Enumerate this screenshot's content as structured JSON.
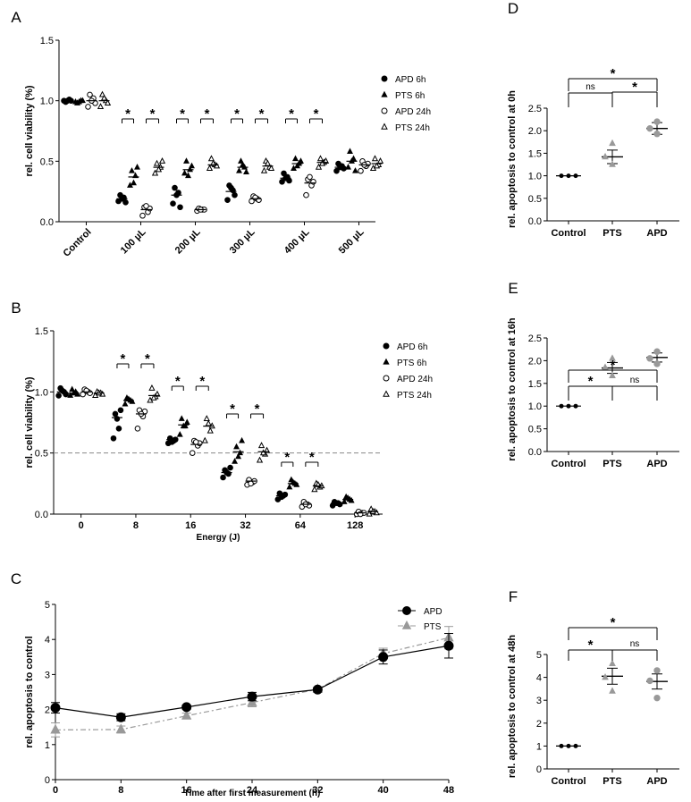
{
  "colors": {
    "black": "#000000",
    "gray": "#999999",
    "dash": "#888888"
  },
  "panels": {
    "A": {
      "letter": "A",
      "ylabel": "rel. cell viability (%)",
      "yticks": [
        "0.0",
        "0.5",
        "1.0",
        "1.5"
      ],
      "xticks": [
        "Control",
        "100 µL",
        "200 µL",
        "300 µL",
        "400 µL",
        "500 µL"
      ],
      "legend": [
        "APD 6h",
        "PTS 6h",
        "APD 24h",
        "PTS 24h"
      ],
      "star": "*"
    },
    "B": {
      "letter": "B",
      "ylabel": "rel. cell viability (%)",
      "xlabel": "Energy (J)",
      "yticks": [
        "0.0",
        "0.5",
        "1.0",
        "1.5"
      ],
      "xticks": [
        "0",
        "8",
        "16",
        "32",
        "64",
        "128"
      ],
      "legend": [
        "APD 6h",
        "PTS 6h",
        "APD 24h",
        "PTS 24h"
      ],
      "star": "*"
    },
    "C": {
      "letter": "C",
      "ylabel": "rel. apoptosis to control",
      "xlabel": "Time after first measurement (h)",
      "yticks": [
        "0",
        "1",
        "2",
        "3",
        "4",
        "5"
      ],
      "xticks": [
        "0",
        "8",
        "16",
        "24",
        "32",
        "40",
        "48"
      ],
      "legend": [
        "APD",
        "PTS"
      ]
    },
    "D": {
      "letter": "D",
      "ylabel": "rel. apoptosis to control at 0h",
      "yticks": [
        "0.0",
        "0.5",
        "1.0",
        "1.5",
        "2.0",
        "2.5"
      ],
      "xticks": [
        "Control",
        "PTS",
        "APD"
      ],
      "sig": [
        "*",
        "ns",
        "*"
      ]
    },
    "E": {
      "letter": "E",
      "ylabel": "rel. apoptosis to control at 16h",
      "yticks": [
        "0.0",
        "0.5",
        "1.0",
        "1.5",
        "2.0",
        "2.5"
      ],
      "xticks": [
        "Control",
        "PTS",
        "APD"
      ],
      "sig": [
        "*",
        "*",
        "ns"
      ]
    },
    "F": {
      "letter": "F",
      "ylabel": "rel. apoptosis to control at 48h",
      "yticks": [
        "0",
        "1",
        "2",
        "3",
        "4",
        "5"
      ],
      "xticks": [
        "Control",
        "PTS",
        "APD"
      ],
      "sig": [
        "*",
        "*",
        "ns"
      ]
    }
  },
  "chart_data": [
    {
      "panel": "A",
      "type": "scatter",
      "ylim": [
        0,
        1.5
      ],
      "reference_line": null,
      "categories": [
        "Control",
        "100 µL",
        "200 µL",
        "300 µL",
        "400 µL",
        "500 µL"
      ],
      "series": [
        {
          "name": "APD 6h",
          "means": [
            1.0,
            0.19,
            0.22,
            0.25,
            0.36,
            0.45
          ],
          "points": [
            [
              1.0,
              1.01,
              0.99,
              1.0,
              1.0
            ],
            [
              0.17,
              0.2,
              0.22,
              0.16,
              0.19
            ],
            [
              0.15,
              0.24,
              0.28,
              0.12,
              0.22
            ],
            [
              0.18,
              0.26,
              0.3,
              0.22,
              0.28
            ],
            [
              0.33,
              0.37,
              0.4,
              0.34,
              0.36
            ],
            [
              0.42,
              0.46,
              0.48,
              0.44,
              0.45
            ]
          ]
        },
        {
          "name": "PTS 6h",
          "means": [
            0.99,
            0.37,
            0.43,
            0.45,
            0.48,
            0.5
          ],
          "points": [
            [
              0.99,
              1.0,
              0.98,
              1.0,
              0.99
            ],
            [
              0.3,
              0.38,
              0.42,
              0.45,
              0.32
            ],
            [
              0.4,
              0.43,
              0.5,
              0.46,
              0.38
            ],
            [
              0.42,
              0.45,
              0.5,
              0.41,
              0.47
            ],
            [
              0.44,
              0.48,
              0.52,
              0.5,
              0.46
            ],
            [
              0.45,
              0.52,
              0.58,
              0.42,
              0.5
            ]
          ]
        },
        {
          "name": "APD 24h",
          "means": [
            1.0,
            0.1,
            0.1,
            0.19,
            0.32,
            0.47
          ],
          "points": [
            [
              0.95,
              1.02,
              1.05,
              0.98,
              1.0
            ],
            [
              0.05,
              0.08,
              0.12,
              0.11,
              0.13
            ],
            [
              0.09,
              0.1,
              0.11,
              0.1,
              0.1
            ],
            [
              0.17,
              0.19,
              0.21,
              0.18,
              0.2
            ],
            [
              0.22,
              0.3,
              0.35,
              0.33,
              0.37
            ],
            [
              0.42,
              0.46,
              0.5,
              0.48,
              0.47
            ]
          ]
        },
        {
          "name": "PTS 24h",
          "means": [
            1.0,
            0.45,
            0.47,
            0.46,
            0.49,
            0.48
          ],
          "points": [
            [
              0.95,
              1.0,
              1.05,
              0.98,
              1.02
            ],
            [
              0.4,
              0.45,
              0.48,
              0.5,
              0.43
            ],
            [
              0.44,
              0.47,
              0.52,
              0.46,
              0.48
            ],
            [
              0.42,
              0.45,
              0.5,
              0.44,
              0.48
            ],
            [
              0.45,
              0.49,
              0.52,
              0.5,
              0.48
            ],
            [
              0.44,
              0.47,
              0.52,
              0.5,
              0.46
            ]
          ]
        }
      ]
    },
    {
      "panel": "B",
      "type": "scatter",
      "ylim": [
        0,
        1.5
      ],
      "reference_line": 0.5,
      "xlabel": "Energy (J)",
      "categories": [
        "0",
        "8",
        "16",
        "32",
        "64",
        "128"
      ],
      "series": [
        {
          "name": "APD 6h",
          "means": [
            1.0,
            0.79,
            0.61,
            0.34,
            0.15,
            0.09
          ],
          "points": [
            [
              0.97,
              1.0,
              1.03,
              0.98,
              1.01
            ],
            [
              0.62,
              0.7,
              0.82,
              0.85,
              0.78
            ],
            [
              0.58,
              0.6,
              0.62,
              0.61,
              0.59
            ],
            [
              0.3,
              0.33,
              0.36,
              0.38,
              0.34
            ],
            [
              0.12,
              0.15,
              0.17,
              0.16,
              0.14
            ],
            [
              0.07,
              0.09,
              0.1,
              0.08,
              0.09
            ]
          ]
        },
        {
          "name": "PTS 6h",
          "means": [
            0.99,
            0.93,
            0.73,
            0.51,
            0.25,
            0.12
          ],
          "points": [
            [
              0.97,
              1.0,
              1.02,
              0.98,
              0.99
            ],
            [
              0.9,
              0.93,
              0.95,
              0.92,
              0.94
            ],
            [
              0.65,
              0.72,
              0.78,
              0.75,
              0.72
            ],
            [
              0.43,
              0.5,
              0.55,
              0.6,
              0.47
            ],
            [
              0.22,
              0.25,
              0.28,
              0.24,
              0.26
            ],
            [
              0.1,
              0.12,
              0.14,
              0.11,
              0.13
            ]
          ]
        },
        {
          "name": "APD 24h",
          "means": [
            1.0,
            0.82,
            0.57,
            0.27,
            0.08,
            0.01
          ],
          "points": [
            [
              0.98,
              1.0,
              1.02,
              0.99,
              1.01
            ],
            [
              0.7,
              0.8,
              0.85,
              0.84,
              0.82
            ],
            [
              0.5,
              0.56,
              0.6,
              0.58,
              0.59
            ],
            [
              0.24,
              0.26,
              0.28,
              0.27,
              0.25
            ],
            [
              0.06,
              0.08,
              0.1,
              0.07,
              0.08
            ],
            [
              0.0,
              0.01,
              0.02,
              0.01,
              0.0
            ]
          ]
        },
        {
          "name": "PTS 24h",
          "means": [
            0.99,
            0.97,
            0.72,
            0.51,
            0.23,
            0.02
          ],
          "points": [
            [
              0.97,
              0.99,
              1.0,
              0.98,
              0.99
            ],
            [
              0.93,
              0.96,
              1.03,
              0.98,
              0.95
            ],
            [
              0.6,
              0.68,
              0.78,
              0.72,
              0.74
            ],
            [
              0.44,
              0.49,
              0.56,
              0.52,
              0.5
            ],
            [
              0.2,
              0.22,
              0.25,
              0.23,
              0.24
            ],
            [
              0.0,
              0.02,
              0.04,
              0.01,
              0.02
            ]
          ]
        }
      ]
    },
    {
      "panel": "C",
      "type": "line",
      "ylim": [
        0,
        5
      ],
      "xlim": [
        0,
        48
      ],
      "xlabel": "Time after first measurement (h)",
      "ylabel": "rel. apoptosis to control",
      "x": [
        0,
        8,
        16,
        24,
        32,
        40,
        48
      ],
      "series": [
        {
          "name": "APD",
          "values": [
            2.05,
            1.78,
            2.07,
            2.37,
            2.57,
            3.5,
            3.82
          ],
          "errors": [
            0.15,
            0.1,
            0.06,
            0.12,
            0.06,
            0.2,
            0.35
          ]
        },
        {
          "name": "PTS",
          "values": [
            1.42,
            1.43,
            1.82,
            2.2,
            2.58,
            3.6,
            4.05
          ],
          "errors": [
            0.2,
            0.1,
            0.08,
            0.12,
            0.05,
            0.15,
            0.32
          ]
        }
      ]
    },
    {
      "panel": "D",
      "type": "scatter",
      "ylim": [
        0,
        2.5
      ],
      "ylabel": "rel. apoptosis to control at 0h",
      "categories": [
        "Control",
        "PTS",
        "APD"
      ],
      "means": [
        1.0,
        1.42,
        2.05
      ],
      "errors": [
        0.0,
        0.15,
        0.13
      ],
      "points": [
        [
          1.0,
          1.0,
          1.0
        ],
        [
          1.25,
          1.42,
          1.72
        ],
        [
          1.93,
          2.05,
          2.2
        ]
      ],
      "comparisons": [
        {
          "from": "Control",
          "to": "APD",
          "label": "*"
        },
        {
          "from": "Control",
          "to": "PTS",
          "label": "ns"
        },
        {
          "from": "PTS",
          "to": "APD",
          "label": "*"
        }
      ]
    },
    {
      "panel": "E",
      "type": "scatter",
      "ylim": [
        0,
        2.5
      ],
      "ylabel": "rel. apoptosis to control at 16h",
      "categories": [
        "Control",
        "PTS",
        "APD"
      ],
      "means": [
        1.0,
        1.84,
        2.07
      ],
      "errors": [
        0.0,
        0.12,
        0.1
      ],
      "points": [
        [
          1.0,
          1.0,
          1.0
        ],
        [
          1.67,
          1.85,
          2.05
        ],
        [
          1.93,
          2.05,
          2.2
        ]
      ],
      "comparisons": [
        {
          "from": "Control",
          "to": "APD",
          "label": "*"
        },
        {
          "from": "Control",
          "to": "PTS",
          "label": "*"
        },
        {
          "from": "PTS",
          "to": "APD",
          "label": "ns"
        }
      ]
    },
    {
      "panel": "F",
      "type": "scatter",
      "ylim": [
        0,
        5
      ],
      "ylabel": "rel. apoptosis to control at 48h",
      "categories": [
        "Control",
        "PTS",
        "APD"
      ],
      "means": [
        1.0,
        4.05,
        3.82
      ],
      "errors": [
        0.0,
        0.35,
        0.33
      ],
      "points": [
        [
          1.0,
          1.0,
          1.0
        ],
        [
          3.4,
          4.0,
          4.6
        ],
        [
          3.1,
          3.85,
          4.3
        ]
      ],
      "comparisons": [
        {
          "from": "Control",
          "to": "APD",
          "label": "*"
        },
        {
          "from": "Control",
          "to": "PTS",
          "label": "*"
        },
        {
          "from": "PTS",
          "to": "APD",
          "label": "ns"
        }
      ]
    }
  ]
}
